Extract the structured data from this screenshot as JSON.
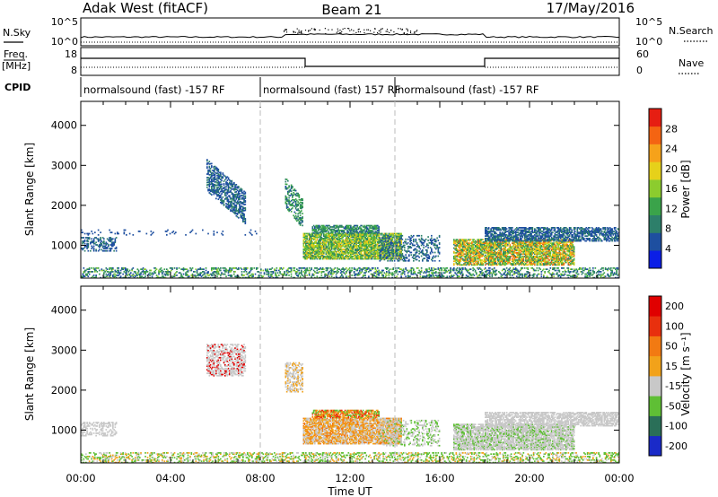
{
  "header": {
    "station": "Adak West (fitACF)",
    "beam": "Beam 21",
    "date": "17/May/2016"
  },
  "strip_labels": {
    "nsky": "N.Sky",
    "nsearch": "N.Search",
    "freq_line1": "Freq.",
    "freq_line2": "[MHz]",
    "nave": "Nave",
    "cpid": "CPID",
    "noise_tick_top_left": "10^5",
    "noise_tick_bottom_left": "10^0",
    "noise_tick_top_right": "10^5",
    "noise_tick_bottom_right": "10^0",
    "freq_tick_top": "18",
    "freq_tick_bottom": "8",
    "nave_tick_top": "60",
    "nave_tick_bottom": "0"
  },
  "cpid_segments": [
    {
      "start_h": 0,
      "label": "normalsound (fast) -157 RF"
    },
    {
      "start_h": 8,
      "label": "normalsound (fast) 157 RF"
    },
    {
      "start_h": 14,
      "label": "normalsound (fast) -157 RF"
    }
  ],
  "chart_data": [
    {
      "type": "heatmap",
      "panel": "power",
      "ylabel": "Slant Range [km]",
      "xlabel": "",
      "ylim": [
        180,
        4600
      ],
      "xlim_hours": [
        0,
        24
      ],
      "yticks": [
        1000,
        2000,
        3000,
        4000
      ],
      "colorbar": {
        "label": "Power [dB]",
        "ticks": [
          "4",
          "8",
          "12",
          "16",
          "20",
          "24",
          "28"
        ],
        "tick_values": [
          4,
          8,
          12,
          16,
          20,
          24,
          28
        ],
        "range": [
          0,
          32
        ],
        "colors": [
          "#0b1ee6",
          "#1e4fa0",
          "#2d7f6a",
          "#3aa34a",
          "#8ccc2e",
          "#e6d11a",
          "#f6a21a",
          "#f46412",
          "#e61e12"
        ]
      },
      "regions": [
        {
          "t": [
            0.0,
            1.6
          ],
          "r": [
            850,
            1200
          ],
          "density": 0.45,
          "vmin": 4,
          "vmax": 9
        },
        {
          "t": [
            0.0,
            7.8
          ],
          "r": [
            1250,
            1400
          ],
          "density": 0.08,
          "vmin": 4,
          "vmax": 7
        },
        {
          "t": [
            5.6,
            7.3
          ],
          "r": [
            2350,
            3150
          ],
          "density": 0.55,
          "vmin": 4,
          "vmax": 9,
          "slope": -480
        },
        {
          "t": [
            9.1,
            9.9
          ],
          "r": [
            1950,
            2700
          ],
          "density": 0.45,
          "vmin": 6,
          "vmax": 14,
          "slope": -700
        },
        {
          "t": [
            9.9,
            14.3
          ],
          "r": [
            650,
            1300
          ],
          "density": 0.82,
          "vmin": 8,
          "vmax": 22
        },
        {
          "t": [
            10.3,
            13.3
          ],
          "r": [
            1300,
            1500
          ],
          "density": 0.7,
          "vmin": 6,
          "vmax": 14
        },
        {
          "t": [
            13.3,
            16.0
          ],
          "r": [
            600,
            1250
          ],
          "density": 0.3,
          "vmin": 4,
          "vmax": 10
        },
        {
          "t": [
            16.6,
            22.0
          ],
          "r": [
            500,
            1150
          ],
          "density": 0.75,
          "vmin": 8,
          "vmax": 27
        },
        {
          "t": [
            18.0,
            24.0
          ],
          "r": [
            1100,
            1450
          ],
          "density": 0.65,
          "vmin": 4,
          "vmax": 9
        },
        {
          "t": [
            0.0,
            24.0
          ],
          "r": [
            180,
            450
          ],
          "density": 0.35,
          "vmin": 4,
          "vmax": 16
        }
      ]
    },
    {
      "type": "heatmap",
      "panel": "velocity",
      "ylabel": "Slant Range [km]",
      "xlabel": "Time UT",
      "ylim": [
        180,
        4600
      ],
      "xlim_hours": [
        0,
        24
      ],
      "yticks": [
        1000,
        2000,
        3000,
        4000
      ],
      "xticks": [
        "00:00",
        "04:00",
        "08:00",
        "12:00",
        "16:00",
        "20:00",
        "00:00"
      ],
      "colorbar": {
        "label": "Velocity [m s⁻¹]",
        "ticks": [
          "200",
          "100",
          "50",
          "15",
          "-15",
          "-50",
          "-100",
          "-200"
        ],
        "colors": [
          "#1a2ac8",
          "#2a6f58",
          "#5fbf35",
          "#c8c8c8",
          "#f2a21a",
          "#f27a12",
          "#e8300e",
          "#e00000"
        ]
      },
      "regions": [
        {
          "t": [
            0.0,
            1.6
          ],
          "r": [
            850,
            1200
          ],
          "density": 0.4,
          "cls": [
            3
          ]
        },
        {
          "t": [
            5.6,
            7.3
          ],
          "r": [
            2350,
            3150
          ],
          "density": 0.5,
          "cls": [
            3,
            3,
            3,
            7
          ]
        },
        {
          "t": [
            9.1,
            9.9
          ],
          "r": [
            1950,
            2700
          ],
          "density": 0.45,
          "cls": [
            3,
            3,
            4
          ]
        },
        {
          "t": [
            9.9,
            14.3
          ],
          "r": [
            650,
            1300
          ],
          "density": 0.8,
          "cls": [
            4,
            4,
            5,
            3,
            3
          ]
        },
        {
          "t": [
            10.3,
            13.3
          ],
          "r": [
            1300,
            1500
          ],
          "density": 0.7,
          "cls": [
            6,
            5,
            4,
            2
          ]
        },
        {
          "t": [
            13.3,
            16.0
          ],
          "r": [
            600,
            1250
          ],
          "density": 0.3,
          "cls": [
            3,
            3,
            2
          ]
        },
        {
          "t": [
            16.6,
            22.0
          ],
          "r": [
            500,
            1150
          ],
          "density": 0.75,
          "cls": [
            3,
            3,
            3,
            2
          ]
        },
        {
          "t": [
            18.0,
            24.0
          ],
          "r": [
            1100,
            1450
          ],
          "density": 0.65,
          "cls": [
            3
          ]
        },
        {
          "t": [
            0.0,
            24.0
          ],
          "r": [
            180,
            450
          ],
          "density": 0.35,
          "cls": [
            2,
            2,
            3,
            4
          ]
        }
      ]
    }
  ]
}
